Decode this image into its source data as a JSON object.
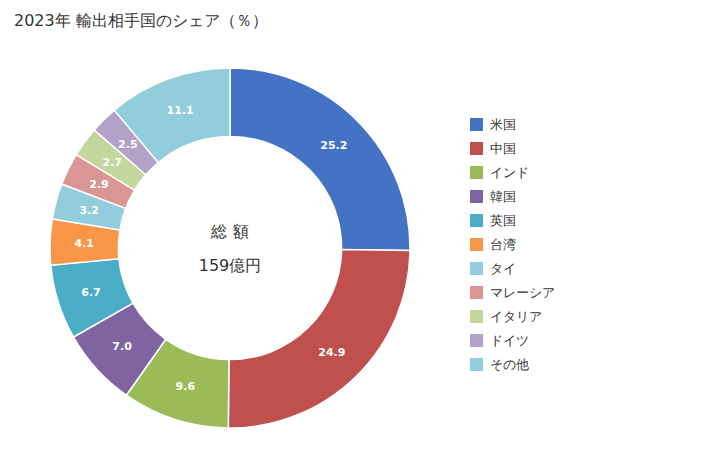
{
  "chart_data": {
    "type": "donut",
    "title": "2023年 輸出相手国のシェア（％）",
    "annotations": [
      "総 額",
      "159億円"
    ],
    "categories": [
      "米国",
      "中国",
      "インド",
      "韓国",
      "英国",
      "台湾",
      "タイ",
      "マレーシア",
      "イタリア",
      "ドイツ",
      "その他"
    ],
    "values": [
      25.2,
      24.9,
      9.6,
      7.0,
      6.7,
      4.1,
      3.2,
      2.9,
      2.7,
      2.5,
      11.1
    ],
    "value_labels": [
      "25.2",
      "24.9",
      "9.6",
      "7.0",
      "6.7",
      "4.1",
      "3.2",
      "2.9",
      "2.7",
      "2.5",
      "11.1"
    ],
    "colors": [
      "#4472C4",
      "#C0504D",
      "#9BBB59",
      "#8064A2",
      "#4BACC6",
      "#F79646",
      "#93CDDD",
      "#D99694",
      "#C3D69B",
      "#B2A2C7",
      "#92CDDC"
    ],
    "data_labels": true,
    "legend": "right"
  }
}
